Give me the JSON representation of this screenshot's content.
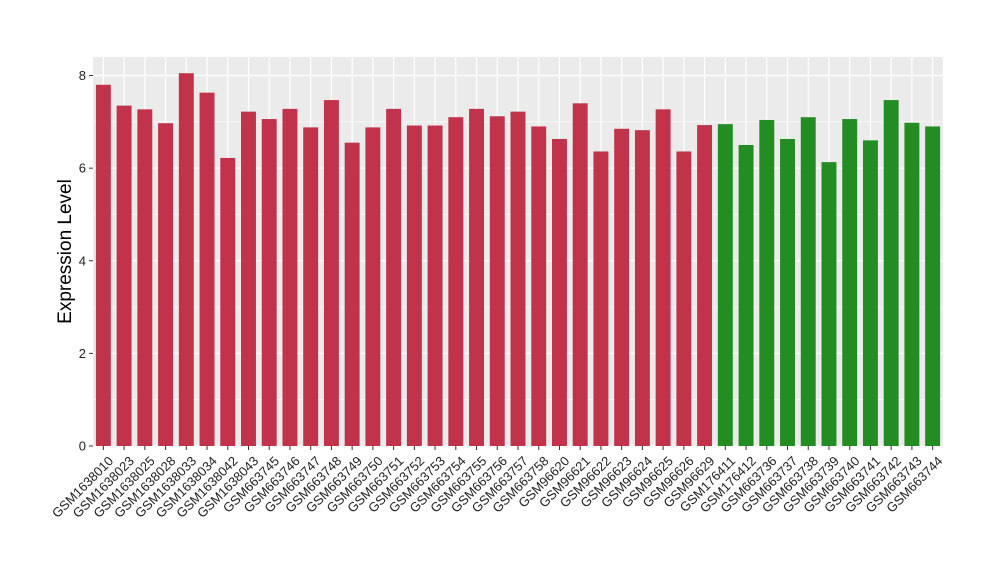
{
  "chart_data": {
    "type": "bar",
    "title": "",
    "xlabel": "",
    "ylabel": "Expression Level",
    "ylim": [
      0,
      8.4
    ],
    "yticks": [
      0,
      2,
      4,
      6,
      8
    ],
    "grid": true,
    "legend": "none",
    "colors": {
      "group_1": "#c1334a",
      "group_2": "#238d23",
      "panel": "#ebebeb",
      "gridline": "#ffffff"
    },
    "categories": [
      "GSM1638010",
      "GSM1638023",
      "GSM1638025",
      "GSM1638028",
      "GSM1638033",
      "GSM1638034",
      "GSM1638042",
      "GSM1638043",
      "GSM663745",
      "GSM663746",
      "GSM663747",
      "GSM663748",
      "GSM663749",
      "GSM663750",
      "GSM663751",
      "GSM663752",
      "GSM663753",
      "GSM663754",
      "GSM663755",
      "GSM663756",
      "GSM663757",
      "GSM663758",
      "GSM96620",
      "GSM96621",
      "GSM96622",
      "GSM96623",
      "GSM96624",
      "GSM96625",
      "GSM96626",
      "GSM96629",
      "GSM176411",
      "GSM176412",
      "GSM663736",
      "GSM663737",
      "GSM663738",
      "GSM663739",
      "GSM663740",
      "GSM663741",
      "GSM663742",
      "GSM663743",
      "GSM663744"
    ],
    "values": [
      7.8,
      7.35,
      7.27,
      6.97,
      8.05,
      7.63,
      6.22,
      7.22,
      7.06,
      7.28,
      6.88,
      7.47,
      6.55,
      6.88,
      7.28,
      6.92,
      6.92,
      7.1,
      7.28,
      7.12,
      7.22,
      6.9,
      6.63,
      7.4,
      6.36,
      6.85,
      6.82,
      7.27,
      6.36,
      6.93,
      6.95,
      6.5,
      7.04,
      6.63,
      7.1,
      6.13,
      7.06,
      6.6,
      7.47,
      6.98,
      6.9
    ],
    "groups": [
      1,
      1,
      1,
      1,
      1,
      1,
      1,
      1,
      1,
      1,
      1,
      1,
      1,
      1,
      1,
      1,
      1,
      1,
      1,
      1,
      1,
      1,
      1,
      1,
      1,
      1,
      1,
      1,
      1,
      1,
      2,
      2,
      2,
      2,
      2,
      2,
      2,
      2,
      2,
      2,
      2
    ]
  }
}
